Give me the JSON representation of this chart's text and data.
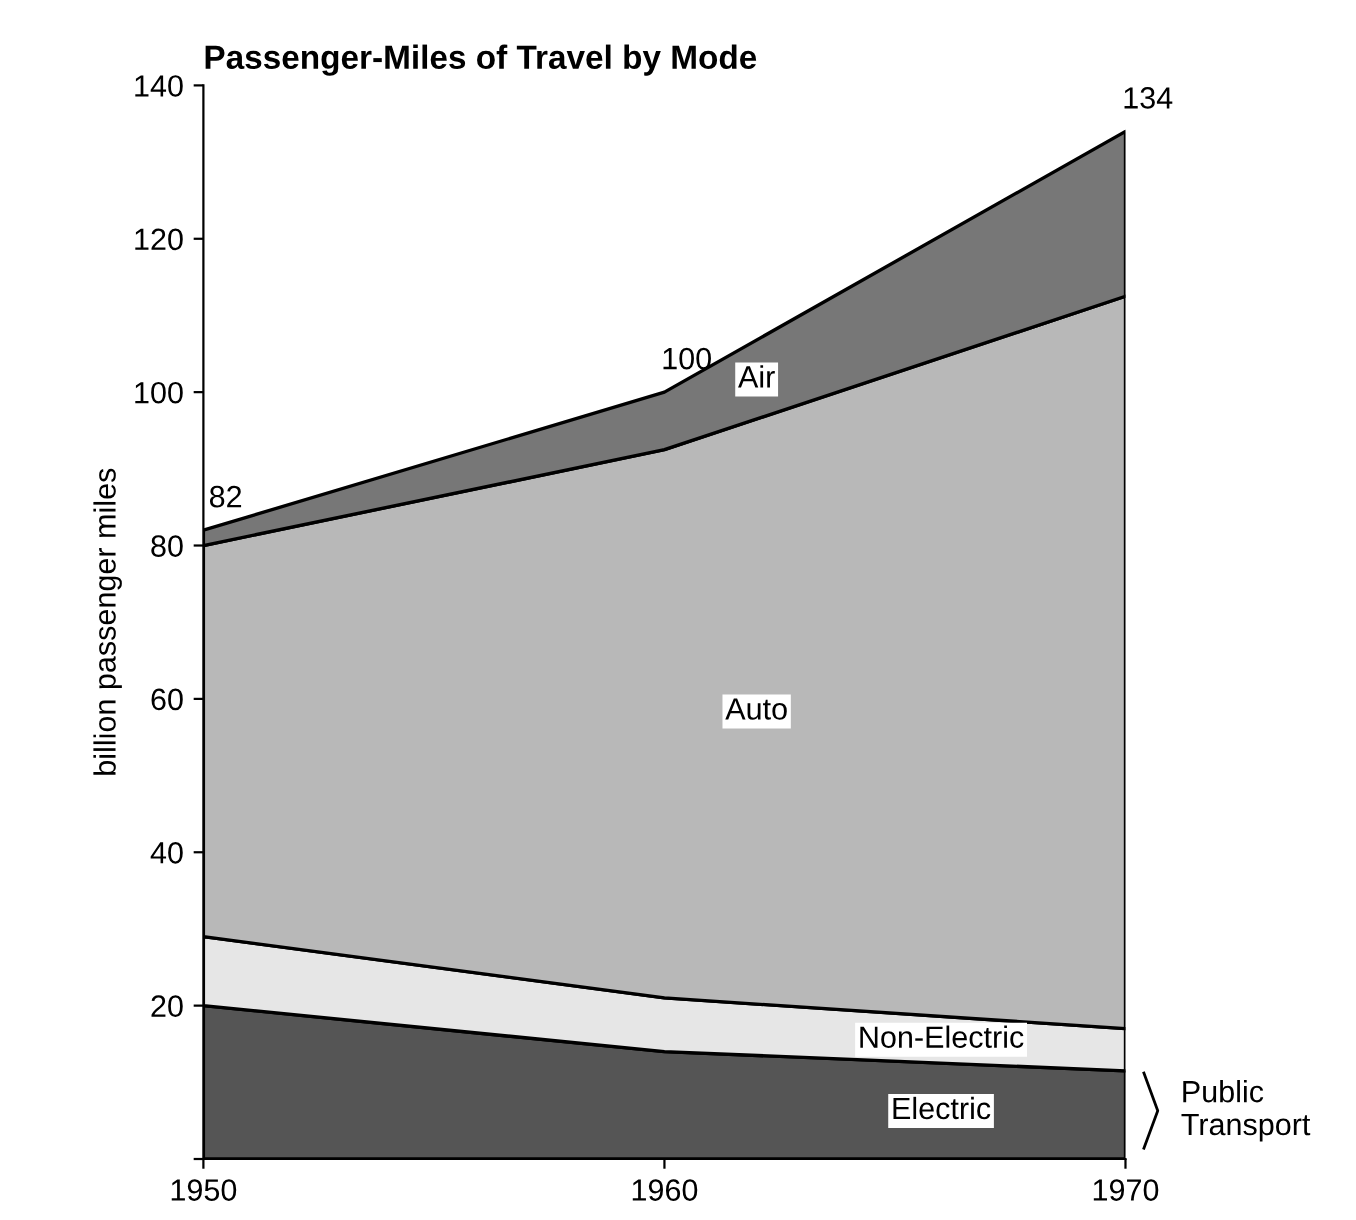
{
  "chart_data": {
    "type": "area",
    "stacked": true,
    "title": "Passenger-Miles of Travel by Mode",
    "ylabel": "billion passenger miles",
    "x": [
      1950,
      1960,
      1970
    ],
    "series": [
      {
        "name": "Electric",
        "color": "#555555",
        "values": [
          20,
          14,
          11.5
        ]
      },
      {
        "name": "Non-Electric",
        "color": "#e6e6e6",
        "values": [
          9,
          7,
          5.5
        ]
      },
      {
        "name": "Auto",
        "color": "#b8b8b8",
        "values": [
          51,
          71.5,
          95.5
        ]
      },
      {
        "name": "Air",
        "color": "#777777",
        "values": [
          2,
          7.5,
          21.5
        ]
      }
    ],
    "annotations": [
      {
        "text": "82",
        "x": 1950,
        "y": 82
      },
      {
        "text": "100",
        "x": 1960,
        "y": 100
      },
      {
        "text": "134",
        "x": 1970,
        "y": 134
      },
      "Public Transport"
    ],
    "xlim": [
      1950,
      1970
    ],
    "xticks": [
      1950,
      1960,
      1970
    ],
    "ylim": [
      0,
      140
    ],
    "yticks": [
      {
        "value": 0,
        "label": null
      },
      20,
      40,
      60,
      80,
      100,
      120,
      140
    ],
    "grid": false,
    "legend": false
  }
}
